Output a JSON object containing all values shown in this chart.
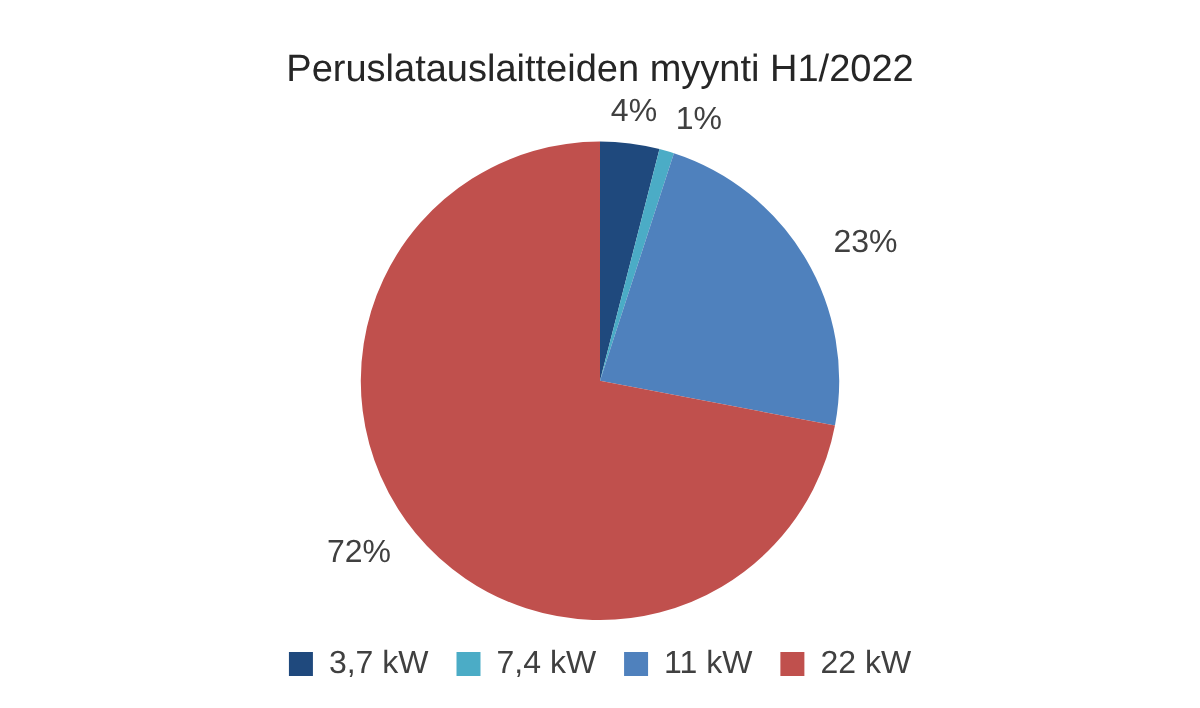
{
  "chart_data": {
    "type": "pie",
    "title": "Peruslatauslaitteiden myynti H1/2022",
    "categories": [
      "3,7 kW",
      "7,4 kW",
      "11 kW",
      "22 kW"
    ],
    "values": [
      4,
      1,
      23,
      72
    ],
    "value_labels": [
      "4%",
      "1%",
      "23%",
      "72%"
    ],
    "colors": [
      "#1f497d",
      "#4bacc6",
      "#4f81bd",
      "#c0504d"
    ],
    "legend": "bottom"
  }
}
